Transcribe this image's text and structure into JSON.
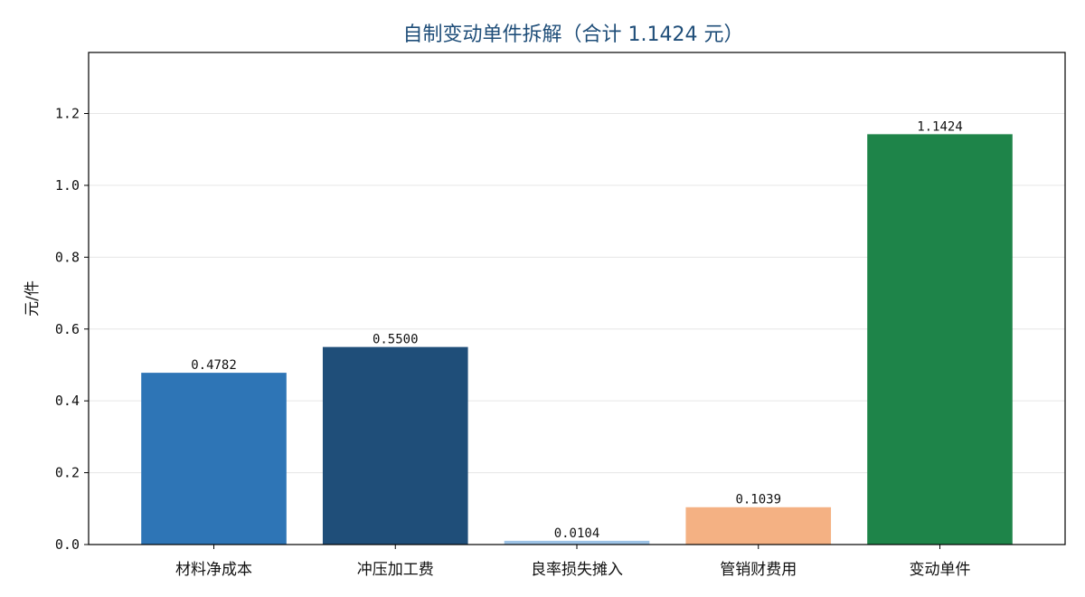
{
  "chart_data": {
    "type": "bar",
    "title": "自制变动单件拆解（合计 1.1424 元）",
    "xlabel": "",
    "ylabel": "元/件",
    "categories": [
      "材料净成本",
      "冲压加工费",
      "良率损失摊入",
      "管销财费用",
      "变动单件"
    ],
    "values": [
      0.4782,
      0.55,
      0.0104,
      0.1039,
      1.1424
    ],
    "value_labels": [
      "0.4782",
      "0.5500",
      "0.0104",
      "0.1039",
      "1.1424"
    ],
    "bar_colors": [
      "#2e75b6",
      "#1f4e79",
      "#9dc3e6",
      "#f4b183",
      "#1e8449"
    ],
    "ylim": [
      0,
      1.37
    ],
    "yticks": [
      0.0,
      0.2,
      0.4,
      0.6,
      0.8,
      1.0,
      1.2
    ],
    "ytick_labels": [
      "0.0",
      "0.2",
      "0.4",
      "0.6",
      "0.8",
      "1.0",
      "1.2"
    ],
    "grid": "horizontal",
    "legend": "none",
    "colors": {
      "title": "#1f4e79",
      "gridline": "#e6e6e6",
      "axis": "#000000"
    }
  }
}
